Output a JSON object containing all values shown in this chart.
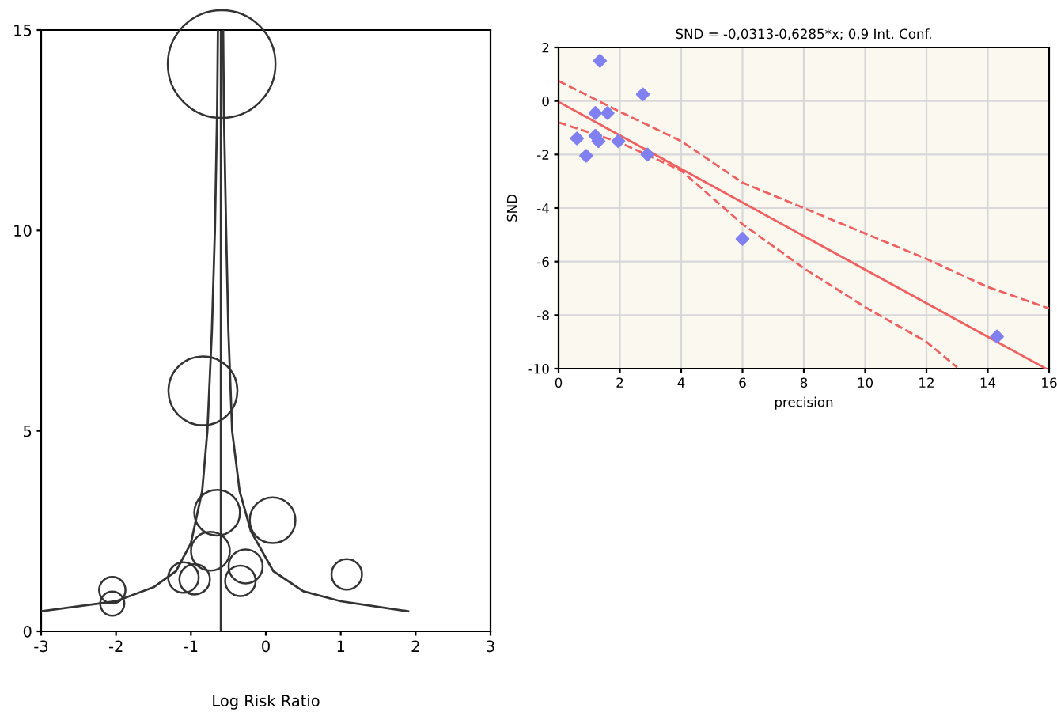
{
  "chart_data": [
    {
      "type": "bubble",
      "xlabel": "Log Risk Ratio",
      "xlim": [
        -3,
        3
      ],
      "ylim": [
        0,
        15
      ],
      "xticks": [
        -3,
        -2,
        -1,
        0,
        1,
        2,
        3
      ],
      "yticks": [
        0,
        5,
        10,
        15
      ],
      "grid": false,
      "legend": false,
      "ref_lines": [
        {
          "axis": "x",
          "value": -0.6,
          "color": "#333333"
        }
      ],
      "series": [
        {
          "color": "#333333",
          "x": [
            -0.59,
            -0.84,
            -0.65,
            0.09,
            -0.74,
            -0.27,
            -0.34,
            -1.1,
            -0.95,
            1.08,
            -2.05,
            -2.05
          ],
          "values": [
            14.15,
            6.0,
            2.96,
            2.77,
            2.0,
            1.62,
            1.26,
            1.34,
            1.3,
            1.42,
            1.03,
            0.69
          ],
          "sizes": [
            1,
            0.41,
            0.18,
            0.18,
            0.13,
            0.1,
            0.08,
            0.08,
            0.08,
            0.08,
            0.06,
            0.05
          ]
        },
        {
          "type": "line",
          "color": "#333333",
          "x": [
            -3,
            -2,
            -1.5,
            -1.2,
            -1.0,
            -0.85,
            -0.78,
            -0.72,
            -0.68,
            -0.65,
            -0.64
          ],
          "values": [
            0.5,
            0.75,
            1.1,
            1.5,
            2.2,
            3.5,
            5,
            7.5,
            10,
            13,
            15
          ]
        },
        {
          "type": "line",
          "color": "#333333",
          "x": [
            1.9,
            1.0,
            0.5,
            0.1,
            -0.2,
            -0.35,
            -0.45,
            -0.5,
            -0.53,
            -0.56,
            -0.57
          ],
          "values": [
            0.5,
            0.75,
            1.0,
            1.5,
            2.5,
            3.5,
            5,
            7.5,
            10,
            13,
            15
          ]
        }
      ]
    },
    {
      "type": "scatter",
      "title": "SND = -0,0313-0,6285*x; 0,9 Int. Conf.",
      "xlabel": "precision",
      "ylabel": "SND",
      "xlim": [
        0,
        16
      ],
      "ylim": [
        -10,
        2
      ],
      "xticks": [
        0,
        2,
        4,
        6,
        8,
        10,
        12,
        14,
        16
      ],
      "yticks": [
        -10,
        -8,
        -6,
        -4,
        -2,
        0,
        2
      ],
      "grid": true,
      "legend": false,
      "series": [
        {
          "color": "#8080f0",
          "marker": "diamond",
          "x": [
            0.6,
            0.9,
            1.2,
            1.2,
            1.3,
            1.35,
            1.6,
            1.95,
            2.75,
            2.9,
            6.0,
            14.3
          ],
          "values": [
            -1.4,
            -2.05,
            -0.45,
            -1.3,
            -1.5,
            1.5,
            -0.45,
            -1.5,
            0.25,
            -2.0,
            -5.15,
            -8.8
          ]
        },
        {
          "type": "line",
          "color": "#f06060",
          "line_style": "solid",
          "x": [
            0,
            15.9
          ],
          "values": [
            -0.03,
            -10.0
          ]
        },
        {
          "type": "line",
          "color": "#f06060",
          "line_style": "dashed",
          "x": [
            0,
            2,
            4,
            6,
            8,
            10,
            12,
            14,
            16
          ],
          "values": [
            0.75,
            -0.4,
            -1.5,
            -3.05,
            -4.0,
            -4.95,
            -5.9,
            -6.95,
            -7.75
          ]
        },
        {
          "type": "line",
          "color": "#f06060",
          "line_style": "dashed",
          "x": [
            0,
            2,
            4,
            6,
            8,
            10,
            12,
            13
          ],
          "values": [
            -0.8,
            -1.55,
            -2.6,
            -4.6,
            -6.25,
            -7.7,
            -9.0,
            -9.95
          ]
        }
      ]
    }
  ]
}
